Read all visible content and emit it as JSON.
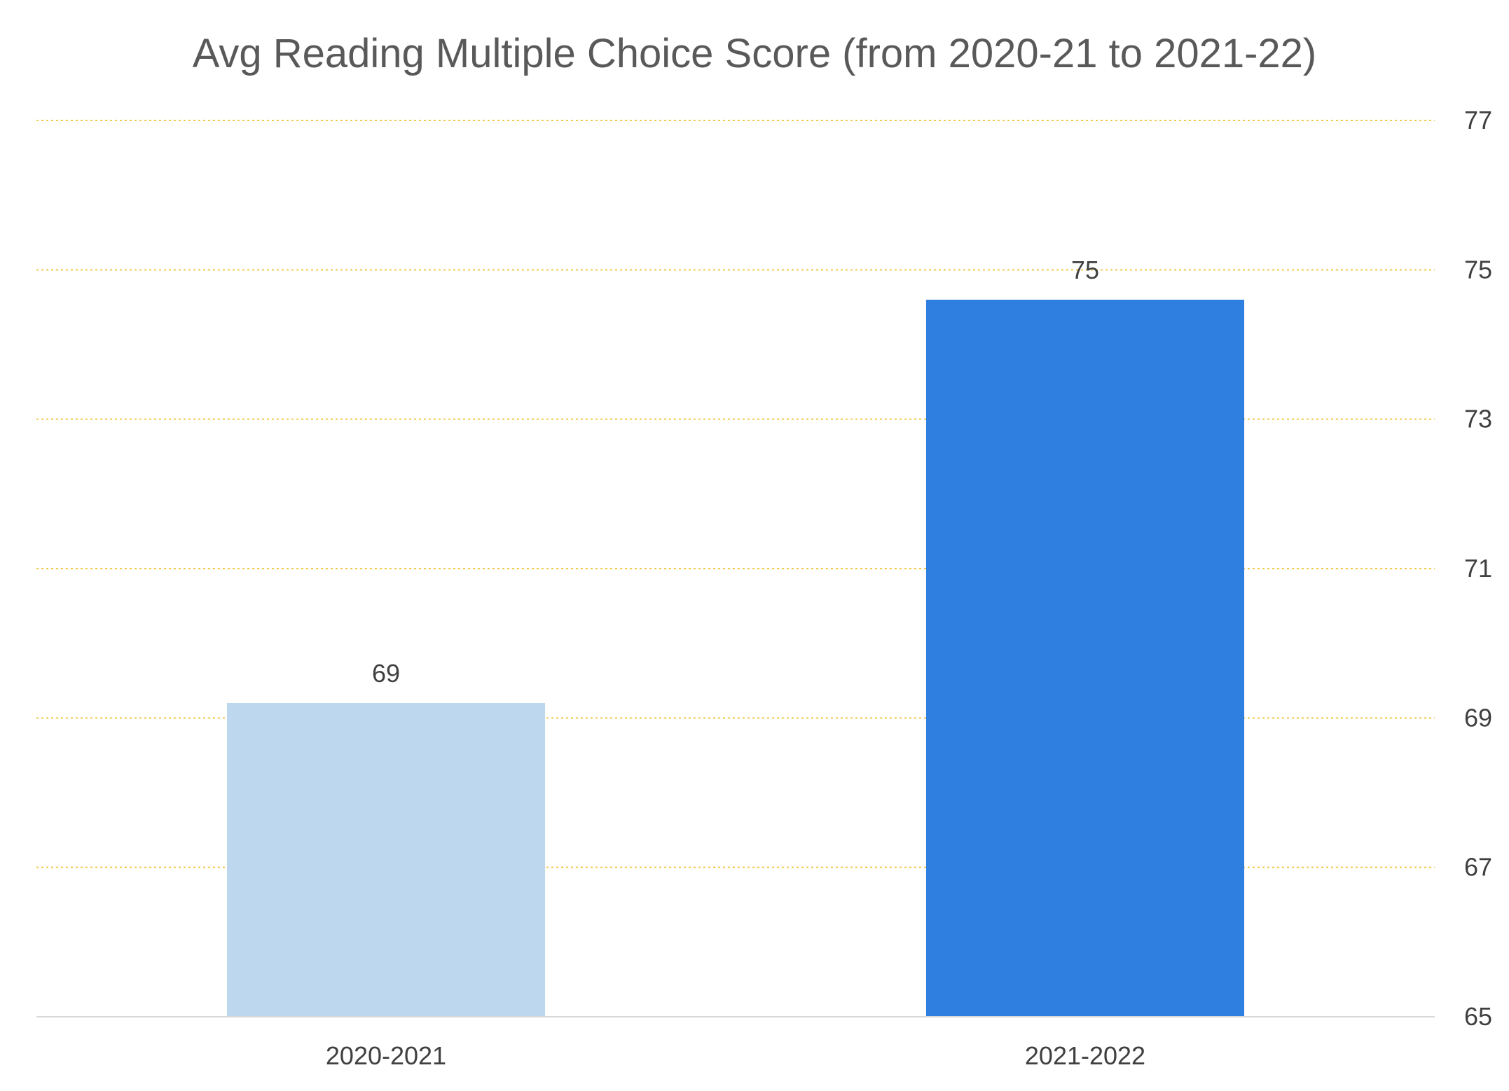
{
  "chart_data": {
    "type": "bar",
    "title": "Avg Reading Multiple Choice Score (from 2020-21 to 2021-22)",
    "categories": [
      "2020-2021",
      "2021-2022"
    ],
    "values": [
      69.2,
      74.6
    ],
    "data_labels": [
      "69",
      "75"
    ],
    "bar_colors": [
      "#BDD7EE",
      "#2E7FE0"
    ],
    "xlabel": "",
    "ylabel": "",
    "ylim": [
      65,
      77
    ],
    "yticks": [
      65,
      67,
      69,
      71,
      73,
      75,
      77
    ],
    "ytick_labels": [
      "65",
      "67",
      "69",
      "71",
      "73",
      "75",
      "77"
    ],
    "y_axis_position": "right",
    "grid": true,
    "grid_color": "#F2C94C",
    "axis_color": "#D9D9D9",
    "legend": "none"
  }
}
